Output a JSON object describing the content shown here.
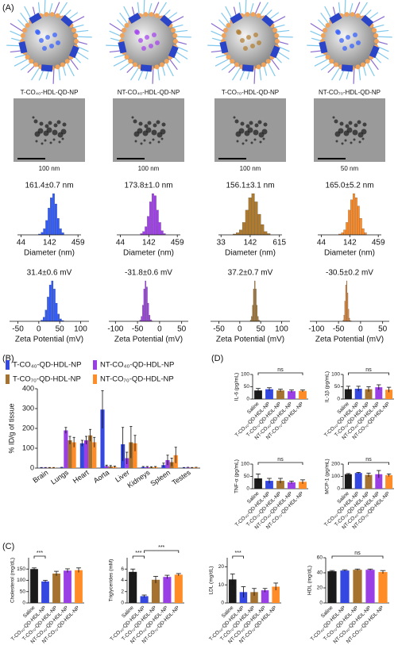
{
  "panels": {
    "a": "(A)",
    "b": "(B)",
    "c": "(C)",
    "d": "(D)"
  },
  "samples": [
    {
      "name": "T-CO₄₀-HDL-QD-NP",
      "scale_bar": "100 nm"
    },
    {
      "name": "NT-CO₄₀-HDL-QD-NP",
      "scale_bar": "100 nm"
    },
    {
      "name": "T-CO₇₀-HDL-QD-NP",
      "scale_bar": "100 nm"
    },
    {
      "name": "NT-CO₇₀-HDL-QD-NP",
      "scale_bar": "50 nm"
    }
  ],
  "chart_data": [
    {
      "type": "histogram",
      "title": "161.4±0.7 nm",
      "xlabel": "Diameter (nm)",
      "xscale": "log",
      "color": "#2f5bff",
      "xlim": [
        38,
        520
      ],
      "xticks": [
        44,
        142,
        459
      ],
      "bins": [
        90,
        100,
        110,
        121,
        133,
        146,
        161,
        177,
        195,
        214,
        236,
        260
      ],
      "counts": [
        2,
        6,
        15,
        35,
        65,
        90,
        100,
        75,
        40,
        15,
        5
      ]
    },
    {
      "type": "histogram",
      "title": "173.8±1.0 nm",
      "xlabel": "Diameter (nm)",
      "xscale": "log",
      "color": "#a43ff0",
      "xlim": [
        38,
        520
      ],
      "xticks": [
        44,
        142,
        459
      ],
      "bins": [
        100,
        110,
        121,
        133,
        146,
        161,
        177,
        195,
        214,
        236,
        260,
        286
      ],
      "counts": [
        3,
        8,
        20,
        45,
        80,
        100,
        95,
        60,
        30,
        10,
        3
      ]
    },
    {
      "type": "histogram",
      "title": "156.1±3.1 nm",
      "xlabel": "Diameter (nm)",
      "xscale": "log",
      "color": "#b07a2c",
      "xlim": [
        29,
        700
      ],
      "xticks": [
        33,
        142,
        615
      ],
      "bins": [
        60,
        70,
        82,
        96,
        112,
        131,
        153,
        179,
        209,
        245,
        286,
        335,
        392
      ],
      "counts": [
        2,
        5,
        12,
        30,
        60,
        90,
        100,
        80,
        50,
        25,
        8,
        3
      ]
    },
    {
      "type": "histogram",
      "title": "165.0±5.2 nm",
      "xlabel": "Diameter (nm)",
      "xscale": "log",
      "color": "#ff8c26",
      "xlim": [
        38,
        520
      ],
      "xticks": [
        44,
        142,
        459
      ],
      "bins": [
        90,
        100,
        110,
        121,
        133,
        146,
        161,
        177,
        195,
        214,
        236,
        260,
        286
      ],
      "counts": [
        2,
        5,
        12,
        30,
        60,
        85,
        100,
        90,
        70,
        40,
        15,
        5
      ]
    },
    {
      "type": "histogram",
      "title": "31.4±0.6 mV",
      "xlabel": "Zeta Potential (mV)",
      "color": "#2f5bff",
      "xlim": [
        -70,
        120
      ],
      "xticks": [
        -50,
        0,
        50,
        100
      ],
      "bins": [
        5,
        10,
        15,
        20,
        25,
        30,
        35,
        40,
        45,
        50,
        55,
        60
      ],
      "counts": [
        3,
        10,
        28,
        60,
        90,
        100,
        80,
        45,
        18,
        6,
        2
      ]
    },
    {
      "type": "histogram",
      "title": "-31.8±0.6 mV",
      "xlabel": "Zeta Potential (mV)",
      "color": "#a43ff0",
      "xlim": [
        -115,
        65
      ],
      "xticks": [
        -100,
        -50,
        0,
        50
      ],
      "bins": [
        -45,
        -42,
        -39,
        -36,
        -33,
        -30,
        -27,
        -24,
        -21,
        -18,
        -15
      ],
      "counts": [
        3,
        12,
        40,
        80,
        100,
        85,
        45,
        15,
        4,
        1
      ]
    },
    {
      "type": "histogram",
      "title": "37.2±0.7 mV",
      "xlabel": "Zeta Potential (mV)",
      "color": "#b07a2c",
      "xlim": [
        -70,
        120
      ],
      "xticks": [
        -50,
        0,
        50,
        100
      ],
      "bins": [
        25,
        27.5,
        30,
        32.5,
        35,
        37.5,
        40,
        42.5,
        45,
        47.5,
        50
      ],
      "counts": [
        3,
        12,
        40,
        80,
        100,
        80,
        40,
        12,
        3,
        1
      ]
    },
    {
      "type": "histogram",
      "title": "-30.5±0.2 mV",
      "xlabel": "Zeta Potential (mV)",
      "color": "#ff8c26",
      "xlim": [
        -115,
        65
      ],
      "xticks": [
        -100,
        -50,
        0,
        50
      ],
      "bins": [
        -40,
        -38,
        -36,
        -34,
        -32,
        -30,
        -28,
        -26,
        -24,
        -22,
        -20
      ],
      "counts": [
        3,
        15,
        50,
        90,
        100,
        70,
        30,
        8,
        2,
        1
      ]
    },
    {
      "type": "bar",
      "ylabel": "% ID/g of tissue",
      "ylim": [
        0,
        400
      ],
      "yticks": [
        0,
        100,
        200,
        300,
        400
      ],
      "legend": "top",
      "categories": [
        "Brain",
        "Lungs",
        "Heart",
        "Aorta",
        "Liver",
        "Kidneys",
        "Spleen",
        "Testes"
      ],
      "series": [
        {
          "name": "T-CO₄₀-QD-HDL-NP",
          "color": "#3447e0",
          "values": [
            2,
            3,
            125,
            295,
            120,
            5,
            15,
            2
          ],
          "errors": [
            1,
            1,
            15,
            95,
            85,
            3,
            10,
            1
          ]
        },
        {
          "name": "NT-CO₄₀-QD-HDL-NP",
          "color": "#9a3ee6",
          "values": [
            2,
            190,
            140,
            10,
            50,
            5,
            40,
            3
          ],
          "errors": [
            1,
            15,
            20,
            5,
            30,
            3,
            25,
            1
          ]
        },
        {
          "name": "T-CO₇₀-QD-HDL-NP",
          "color": "#a57230",
          "values": [
            2,
            140,
            165,
            8,
            130,
            4,
            30,
            2
          ],
          "errors": [
            1,
            20,
            30,
            5,
            80,
            3,
            20,
            1
          ]
        },
        {
          "name": "NT-CO₇₀-QD-HDL-NP",
          "color": "#ff8c26",
          "values": [
            2,
            130,
            130,
            6,
            125,
            5,
            65,
            3
          ],
          "errors": [
            1,
            25,
            25,
            4,
            40,
            3,
            40,
            1
          ]
        }
      ]
    },
    {
      "type": "bar",
      "ylabel": "IL-6 (pg/mL)",
      "ylim": [
        0,
        100
      ],
      "yticks": [
        0,
        50,
        100
      ],
      "annotations": [
        "ns"
      ],
      "categories": [
        "Saline",
        "T-CO₄₀-QD-HDL-NP",
        "T-CO₇₀-QD-HDL-NP",
        "NT-CO₄₀-QD-HDL-NP",
        "NT-CO₇₀-QD-HDL-NP"
      ],
      "colors": [
        "#1a1a1a",
        "#3447e0",
        "#a57230",
        "#9a3ee6",
        "#ff8c26"
      ],
      "values": [
        35,
        40,
        35,
        32,
        33
      ],
      "errors": [
        8,
        6,
        5,
        5,
        4
      ]
    },
    {
      "type": "bar",
      "ylabel": "IL-1β (pg/mL)",
      "ylim": [
        0,
        100
      ],
      "yticks": [
        0,
        50,
        100
      ],
      "annotations": [
        "ns"
      ],
      "categories": [
        "Saline",
        "T-CO₄₀-QD-HDL-NP",
        "T-CO₇₀-QD-HDL-NP",
        "NT-CO₄₀-QD-HDL-NP",
        "NT-CO₇₀-QD-HDL-NP"
      ],
      "colors": [
        "#1a1a1a",
        "#3447e0",
        "#a57230",
        "#9a3ee6",
        "#ff8c26"
      ],
      "values": [
        40,
        42,
        40,
        48,
        38
      ],
      "errors": [
        12,
        10,
        10,
        10,
        10
      ]
    },
    {
      "type": "bar",
      "ylabel": "TNF-α (pg/mL)",
      "ylim": [
        0,
        100
      ],
      "yticks": [
        0,
        50,
        100
      ],
      "annotations": [
        "ns"
      ],
      "categories": [
        "Saline",
        "T-CO₄₀-QD-HDL-NP",
        "T-CO₇₀-QD-HDL-NP",
        "NT-CO₄₀-QD-HDL-NP",
        "NT-CO₇₀-QD-HDL-NP"
      ],
      "colors": [
        "#1a1a1a",
        "#3447e0",
        "#a57230",
        "#9a3ee6",
        "#ff8c26"
      ],
      "values": [
        42,
        32,
        32,
        26,
        28
      ],
      "errors": [
        18,
        10,
        10,
        5,
        8
      ]
    },
    {
      "type": "bar",
      "ylabel": "MCP-1 (pg/mL)",
      "ylim": [
        0,
        200
      ],
      "yticks": [
        0,
        100,
        200
      ],
      "annotations": [
        "ns"
      ],
      "categories": [
        "Saline",
        "T-CO₄₀-QD-HDL-NP",
        "T-CO₇₀-QD-HDL-NP",
        "NT-CO₄₀-QD-HDL-NP",
        "NT-CO₇₀-QD-HDL-NP"
      ],
      "colors": [
        "#1a1a1a",
        "#3447e0",
        "#a57230",
        "#9a3ee6",
        "#ff8c26"
      ],
      "values": [
        118,
        128,
        112,
        118,
        110
      ],
      "errors": [
        5,
        5,
        15,
        30,
        10
      ]
    },
    {
      "type": "bar",
      "ylabel": "Cholesterol (mg/dL)",
      "ylim": [
        0,
        200
      ],
      "yticks": [
        0,
        50,
        100,
        150
      ],
      "annotations": [
        "***"
      ],
      "categories": [
        "Saline",
        "T-CO₄₀-QD-HDL-NP",
        "T-CO₇₀-QD-HDL-NP",
        "NT-CO₄₀-QD-HDL-NP",
        "NT-CO₇₀-QD-HDL-NP"
      ],
      "colors": [
        "#1a1a1a",
        "#3447e0",
        "#a57230",
        "#9a3ee6",
        "#ff8c26"
      ],
      "values": [
        150,
        95,
        130,
        143,
        145
      ],
      "errors": [
        5,
        5,
        10,
        8,
        10
      ]
    },
    {
      "type": "bar",
      "ylabel": "Triglycerides (mM)",
      "ylim": [
        0,
        8
      ],
      "yticks": [
        0,
        2,
        4,
        6
      ],
      "annotations": [
        "***",
        "***"
      ],
      "categories": [
        "Saline",
        "T-CO₄₀-QD-HDL-NP",
        "T-CO₇₀-QD-HDL-NP",
        "NT-CO₄₀-QD-HDL-NP",
        "NT-CO₇₀-QD-HDL-NP"
      ],
      "colors": [
        "#1a1a1a",
        "#3447e0",
        "#a57230",
        "#9a3ee6",
        "#ff8c26"
      ],
      "values": [
        5.5,
        1.2,
        4.1,
        4.6,
        5.0
      ],
      "errors": [
        0.5,
        0.2,
        0.6,
        0.3,
        0.2
      ]
    },
    {
      "type": "bar",
      "ylabel": "LDL (mg/dL)",
      "ylim": [
        0,
        25
      ],
      "yticks": [
        0,
        10,
        20
      ],
      "annotations": [
        "***"
      ],
      "categories": [
        "Saline",
        "T-CO₄₀-QD-HDL-NP",
        "T-CO₇₀-QD-HDL-NP",
        "NT-CO₄₀-QD-HDL-NP",
        "NT-CO₇₀-QD-HDL-NP"
      ],
      "colors": [
        "#1a1a1a",
        "#3447e0",
        "#a57230",
        "#9a3ee6",
        "#ff8c26"
      ],
      "values": [
        13,
        6,
        6,
        7,
        9
      ],
      "errors": [
        3,
        3,
        2,
        1,
        2
      ]
    },
    {
      "type": "bar",
      "ylabel": "HDL (mg/dL)",
      "ylim": [
        0,
        60
      ],
      "yticks": [
        0,
        20,
        40,
        60
      ],
      "annotations": [
        "ns"
      ],
      "categories": [
        "Saline",
        "T-CO₄₀-QD-HDL-NP",
        "T-CO₇₀-QD-HDL-NP",
        "NT-CO₄₀-QD-HDL-NP",
        "NT-CO₇₀-QD-HDL-NP"
      ],
      "colors": [
        "#1a1a1a",
        "#3447e0",
        "#a57230",
        "#9a3ee6",
        "#ff8c26"
      ],
      "values": [
        42,
        43,
        44,
        44,
        41
      ],
      "errors": [
        1,
        1,
        1,
        1,
        2
      ]
    }
  ]
}
